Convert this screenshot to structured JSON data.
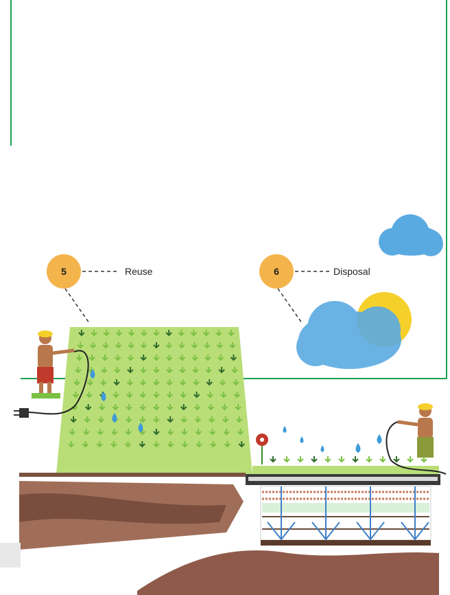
{
  "steps": [
    {
      "number": "5",
      "label": "Reuse"
    },
    {
      "number": "6",
      "label": "Disposal"
    }
  ],
  "colors": {
    "frame": "#1aa050",
    "badge": "#f4b44c",
    "field": "#b9de78",
    "plant": "#7cc043",
    "water": "#3e9ad8",
    "cloud": "#5aaae2",
    "sun": "#f6d02a",
    "soil": "#8f6450",
    "ground_bar": "#7a5140"
  },
  "icons": [
    "farmer-icon",
    "pump-plug-icon",
    "flower-icon",
    "cloud-icon",
    "sun-icon",
    "water-drop-icon"
  ]
}
